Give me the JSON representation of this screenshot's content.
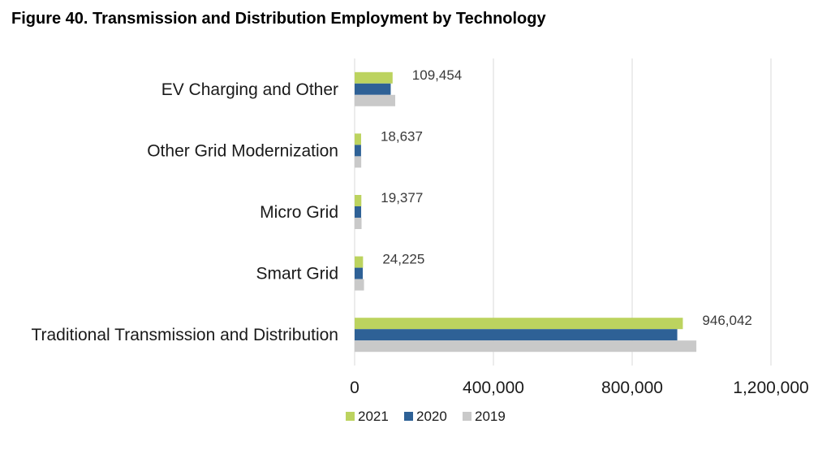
{
  "chart_data": {
    "type": "bar",
    "orientation": "horizontal",
    "title": "Figure 40. Transmission and Distribution Employment by Technology",
    "categories": [
      "EV Charging and Other",
      "Other Grid Modernization",
      "Micro Grid",
      "Smart Grid",
      "Traditional Transmission and Distribution"
    ],
    "series": [
      {
        "name": "2021",
        "color": "#bcd35f",
        "values": [
          109454,
          18637,
          19377,
          24225,
          946042
        ]
      },
      {
        "name": "2020",
        "color": "#2e6196",
        "values": [
          104000,
          18500,
          18800,
          23500,
          930000
        ]
      },
      {
        "name": "2019",
        "color": "#c9c9c9",
        "values": [
          117000,
          19000,
          20000,
          27000,
          985000
        ]
      }
    ],
    "data_labels": [
      "109,454",
      "18,637",
      "19,377",
      "24,225",
      "946,042"
    ],
    "xlim": [
      0,
      1200000
    ],
    "x_ticks": [
      0,
      400000,
      800000,
      1200000
    ],
    "x_tick_labels": [
      "0",
      "400,000",
      "800,000",
      "1,200,000"
    ],
    "grid": true,
    "legend_position": "bottom"
  }
}
